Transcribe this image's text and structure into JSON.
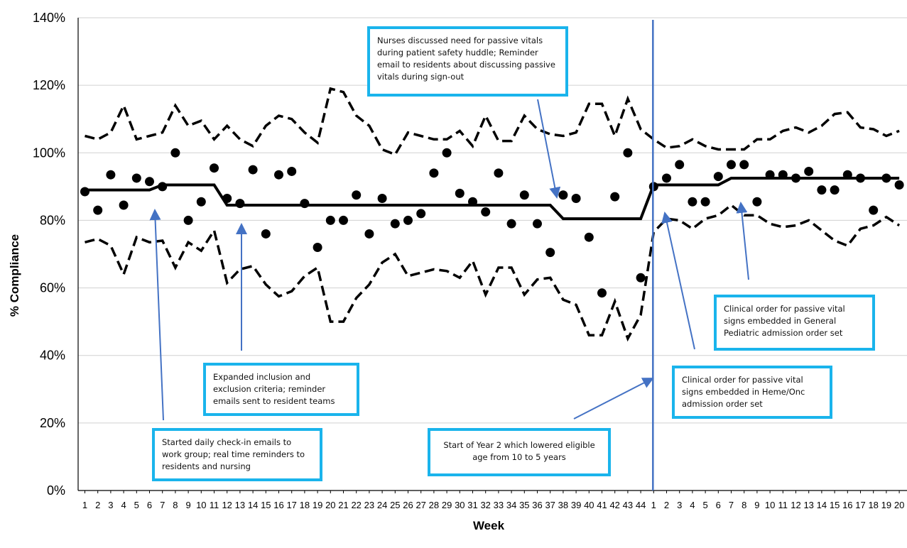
{
  "chart_data": {
    "type": "scatter",
    "ylabel": "% Compliance",
    "xlabel": "Week",
    "ylim": [
      0,
      140
    ],
    "y_ticks": [
      "0%",
      "20%",
      "40%",
      "60%",
      "80%",
      "100%",
      "120%",
      "140%"
    ],
    "x_tick_labels": [
      "1",
      "2",
      "3",
      "4",
      "5",
      "6",
      "7",
      "8",
      "9",
      "10",
      "11",
      "12",
      "13",
      "14",
      "15",
      "16",
      "17",
      "18",
      "19",
      "20",
      "21",
      "22",
      "23",
      "24",
      "25",
      "26",
      "27",
      "28",
      "29",
      "30",
      "31",
      "32",
      "33",
      "34",
      "35",
      "36",
      "37",
      "38",
      "39",
      "40",
      "41",
      "42",
      "43",
      "44",
      "1",
      "2",
      "3",
      "4",
      "5",
      "6",
      "7",
      "8",
      "9",
      "10",
      "11",
      "12",
      "13",
      "14",
      "15",
      "16",
      "17",
      "18",
      "19",
      "20"
    ],
    "grid": true,
    "colors": {
      "points": "#000000",
      "center_line": "#000000",
      "limits": "#000000",
      "arrows": "#4472c4",
      "divider": "#4472c4",
      "box_border": "#1ab4ec"
    },
    "series": [
      {
        "name": "",
        "role": "weekly compliance",
        "values": [
          88.5,
          83,
          93.5,
          84.5,
          92.5,
          91.5,
          90,
          100,
          80,
          85.5,
          95.5,
          86.5,
          85,
          95,
          76,
          93.5,
          94.5,
          85,
          72,
          80,
          80,
          87.5,
          76,
          86.5,
          79,
          80,
          82,
          94,
          100,
          88,
          85.5,
          82.5,
          94,
          79,
          87.5,
          79,
          70.5,
          87.5,
          86.5,
          75,
          58.5,
          87,
          100,
          63,
          90,
          92.5,
          96.5,
          85.5,
          85.5,
          93,
          96.5,
          96.5,
          85.5,
          93.5,
          93.5,
          92.5,
          94.5,
          89,
          89,
          93.5,
          92.5,
          83,
          92.5,
          90.5
        ]
      },
      {
        "name": "",
        "role": "center line",
        "values": [
          89,
          89,
          89,
          89,
          89,
          89,
          90.5,
          90.5,
          90.5,
          90.5,
          90.5,
          84.5,
          84.5,
          84.5,
          84.5,
          84.5,
          84.5,
          84.5,
          84.5,
          84.5,
          84.5,
          84.5,
          84.5,
          84.5,
          84.5,
          84.5,
          84.5,
          84.5,
          84.5,
          84.5,
          84.5,
          84.5,
          84.5,
          84.5,
          84.5,
          84.5,
          84.5,
          80.5,
          80.5,
          80.5,
          80.5,
          80.5,
          80.5,
          80.5,
          90.5,
          90.5,
          90.5,
          90.5,
          90.5,
          90.5,
          92.5,
          92.5,
          92.5,
          92.5,
          92.5,
          92.5,
          92.5,
          92.5,
          92.5,
          92.5,
          92.5,
          92.5,
          92.5,
          92.5
        ]
      },
      {
        "name": "",
        "role": "upper control limit",
        "values": [
          105,
          104,
          106,
          114,
          104,
          105,
          106,
          114,
          108,
          109.5,
          104,
          108,
          104,
          102,
          108,
          111,
          110,
          106,
          103,
          119,
          118,
          111,
          108,
          101,
          99.5,
          106,
          105,
          104,
          104,
          106.5,
          102,
          111,
          103.5,
          103.5,
          111,
          107,
          105.5,
          105,
          106,
          114.5,
          114.5,
          105,
          116,
          107,
          104,
          101.5,
          102,
          104,
          102,
          101,
          101,
          101,
          104,
          104,
          106.5,
          107.5,
          106,
          108,
          111.5,
          112,
          107.5,
          107,
          105,
          106.5
        ]
      },
      {
        "name": "",
        "role": "lower control limit",
        "values": [
          73.5,
          74.5,
          72.5,
          64,
          75,
          73.5,
          74,
          66,
          73.5,
          71,
          77,
          61.5,
          65.5,
          66.5,
          61,
          57.5,
          59,
          63.5,
          66,
          50,
          50,
          57,
          61,
          67.5,
          70,
          63.5,
          64.5,
          65.5,
          65,
          63,
          68,
          58,
          66,
          66,
          58,
          62.5,
          63,
          56.5,
          55,
          46,
          46,
          56,
          45,
          52,
          76.5,
          80.5,
          80,
          77.5,
          80.5,
          81.5,
          84.5,
          81.5,
          81.5,
          79,
          78,
          78.5,
          80,
          77,
          74,
          72.5,
          77.5,
          78.5,
          81,
          78.5
        ]
      }
    ],
    "divider_label": "1",
    "annotations": [
      {
        "key": "a1",
        "text": "Started daily check-in emails to work group; real time reminders to residents and nursing"
      },
      {
        "key": "a2",
        "text": "Expanded inclusion and exclusion criteria; reminder emails sent to resident teams"
      },
      {
        "key": "a3",
        "text": "Nurses discussed need for passive vitals during patient safety huddle; Reminder email to residents about discussing passive vitals during sign-out"
      },
      {
        "key": "a4",
        "text": "Start of Year 2 which lowered eligible age from 10 to 5 years"
      },
      {
        "key": "a5",
        "text": "Clinical order for passive vital signs embedded in Heme/Onc admission order set"
      },
      {
        "key": "a6",
        "text": "Clinical order for passive vital signs embedded in General Pediatric admission order set"
      }
    ]
  }
}
